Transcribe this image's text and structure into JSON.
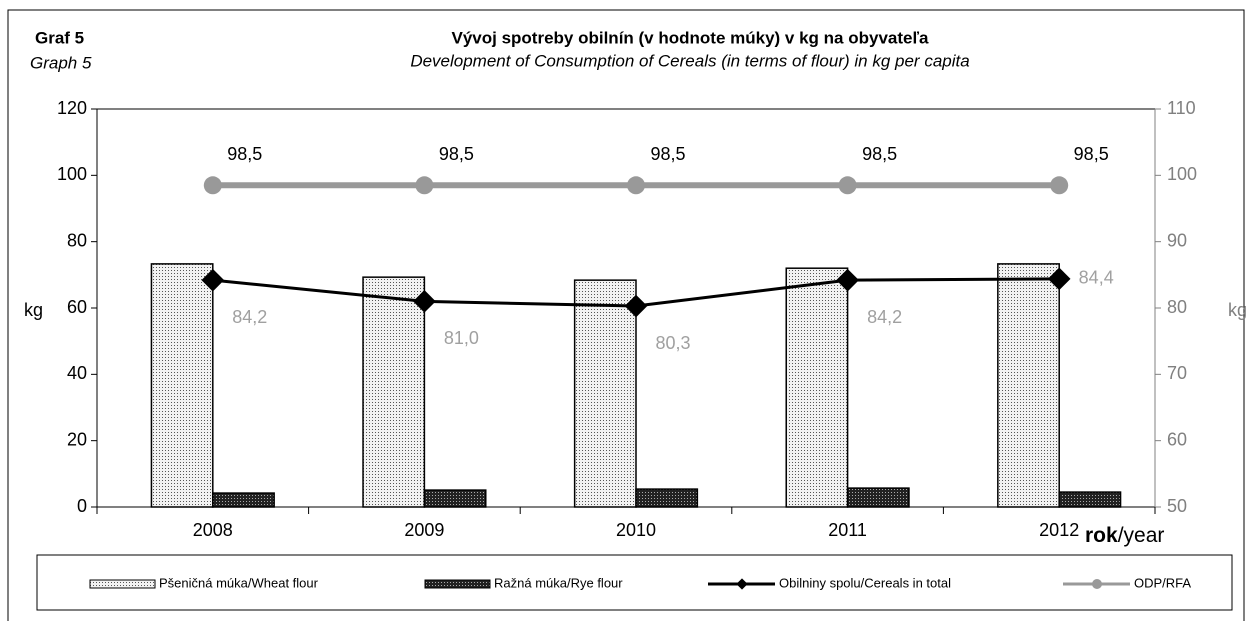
{
  "chart_data": {
    "type": "bar",
    "label": "Graf 5",
    "label_en": "Graph 5",
    "title": "Vývoj spotreby obilnín (v hodnote múky) v kg na obyvateľa",
    "subtitle": "Development of Consumption  of Cereals (in terms of flour) in kg per capita",
    "ylabel": "kg",
    "y2label": "kg",
    "xlabel_parts": [
      "rok",
      "/year"
    ],
    "categories": [
      "2008",
      "2009",
      "2010",
      "2011",
      "2012"
    ],
    "ylim": [
      0,
      120
    ],
    "yticks": [
      0,
      20,
      40,
      60,
      80,
      100,
      120
    ],
    "y2lim": [
      50,
      110
    ],
    "y2ticks": [
      50,
      60,
      70,
      80,
      90,
      100,
      110
    ],
    "series": [
      {
        "name": "Pšeničná múka/Wheat flour",
        "type": "bar",
        "color": "#dcdcdc",
        "values": [
          73.3,
          69.3,
          68.4,
          72.0,
          73.3
        ]
      },
      {
        "name": "Ražná múka/Rye flour",
        "type": "bar",
        "color": "#3a3a3a",
        "values": [
          4.2,
          5.1,
          5.4,
          5.7,
          4.5
        ]
      },
      {
        "name": "Obilniny spolu/Cereals in total",
        "type": "line",
        "axis": "y2",
        "color": "#000000",
        "values": [
          84.2,
          81.0,
          80.3,
          84.2,
          84.4
        ],
        "value_labels": [
          "84,2",
          "81,0",
          "80,3",
          "84,2",
          "84,4"
        ]
      },
      {
        "name": "ODP/RFA",
        "type": "line",
        "axis": "y2",
        "color": "#999999",
        "values": [
          98.5,
          98.5,
          98.5,
          98.5,
          98.5
        ],
        "value_labels": [
          "98,5",
          "98,5",
          "98,5",
          "98,5",
          "98,5"
        ]
      }
    ]
  }
}
